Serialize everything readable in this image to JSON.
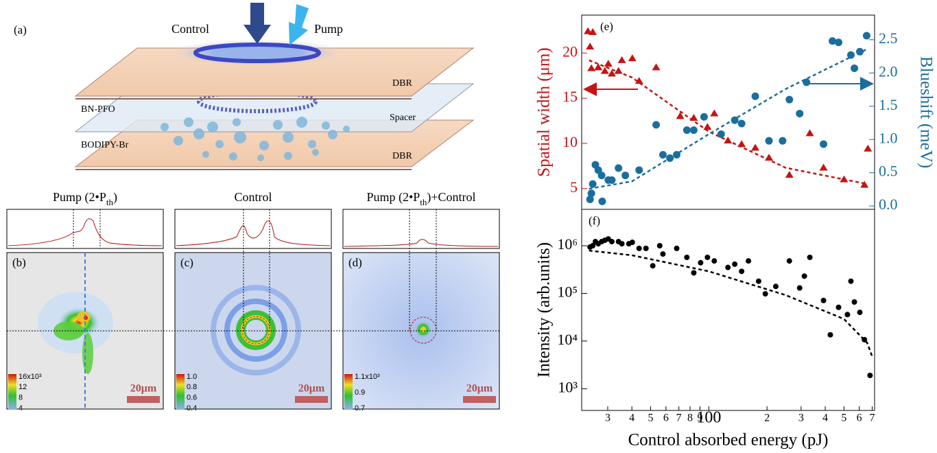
{
  "figure": {
    "panel_a": {
      "label": "(a)",
      "control": "Control",
      "pump": "Pump",
      "dbr_top": "DBR",
      "active": "BN-PFO",
      "spacer": "Spacer",
      "acceptor": "BODIPY-Br",
      "dbr_bottom": "DBR"
    },
    "panels": [
      {
        "label": "(b)",
        "title": [
          "Pump (2•P",
          "th",
          ")"
        ],
        "colorbar": [
          "16x10³",
          "12",
          "8",
          "4"
        ],
        "scale_bar": "20μm"
      },
      {
        "label": "(c)",
        "title": [
          "Control"
        ],
        "colorbar": [
          "1.0",
          "0.8",
          "0.6",
          "0.4"
        ],
        "scale_bar": "20μm"
      },
      {
        "label": "(d)",
        "title": [
          "Pump (2•P",
          "th",
          ")+Control"
        ],
        "colorbar": [
          "1.1x10³",
          "0.9",
          "0.7"
        ],
        "scale_bar": "20μm"
      }
    ]
  },
  "chart_data": [
    {
      "type": "scatter",
      "panel_label": "(e)",
      "ylabel": "Spatial width (μm)",
      "y2label": "Blueshift (meV)",
      "xscale": "log",
      "xlim": [
        22,
        720
      ],
      "ylim": [
        2.7,
        24.2
      ],
      "yticks": [
        5,
        10,
        15,
        20
      ],
      "y2lim": [
        -0.05,
        2.87
      ],
      "y2ticks": [
        {
          "value": 0,
          "label": "0.0"
        },
        0.5,
        {
          "value": 1,
          "label": "1.0"
        },
        1.5,
        {
          "value": 2,
          "label": "2.0"
        },
        2.5
      ],
      "ycolor": "#c41414",
      "y2color": "#1a6e9e",
      "series": [
        {
          "mode": "triangles",
          "color": "#c41414",
          "x": [
            23.7,
            25.1,
            24.3,
            24.7,
            26.8,
            29.0,
            30.2,
            31.5,
            34.1,
            35.5,
            40.2,
            43.6,
            53.4,
            71.1,
            83.6,
            98.4,
            106.7,
            125.6,
            147.8,
            173.9,
            204.7,
            261,
            333,
            392,
            500,
            638,
            665
          ],
          "values": [
            22.4,
            22.3,
            20.7,
            18.3,
            18.4,
            18.0,
            18.8,
            17.7,
            18.0,
            19.2,
            19.4,
            16.9,
            18.4,
            13.0,
            12.8,
            11.8,
            13.3,
            10.3,
            9.9,
            9.5,
            8.4,
            6.5,
            11.1,
            7.3,
            6.0,
            5.4,
            9.4
          ]
        },
        {
          "mode": "dashed",
          "color": "#c41414",
          "x": [
            24,
            40,
            100,
            250,
            660
          ],
          "values": [
            19.2,
            17.3,
            11.3,
            7.3,
            5.5
          ]
        },
        {
          "mode": "circles",
          "color": "#1a6e9e",
          "axis": "y2",
          "x": [
            24.3,
            24.7,
            25.1,
            25.9,
            26.8,
            27.9,
            28.1,
            30.2,
            31.5,
            34.1,
            37.0,
            43.6,
            53.4,
            57.9,
            62.9,
            68.2,
            77.0,
            83.6,
            94.5,
            115.8,
            136.2,
            147.8,
            173.9,
            204.7,
            240.7,
            261,
            295,
            320,
            392,
            436,
            469,
            543,
            566,
            604,
            655
          ],
          "values": [
            0.1,
            0.19,
            0.33,
            0.62,
            0.54,
            0.46,
            0.07,
            0.39,
            0.39,
            0.57,
            0.46,
            0.54,
            1.22,
            0.77,
            0.72,
            0.77,
            1.14,
            1.14,
            1.34,
            1.08,
            1.29,
            1.24,
            1.65,
            0.98,
            0.98,
            1.6,
            1.39,
            1.86,
            0.93,
            2.48,
            2.46,
            2.27,
            2.07,
            2.32,
            2.56
          ]
        },
        {
          "mode": "dashed",
          "color": "#1a6e9e",
          "axis": "y2",
          "x": [
            24,
            40,
            100,
            250,
            660
          ],
          "values": [
            0.26,
            0.37,
            1.08,
            1.76,
            2.36
          ]
        }
      ]
    },
    {
      "type": "scatter",
      "panel_label": "(f)",
      "ylabel": "Intensity (arb.units)",
      "xlabel": "Control absorbed energy (pJ)",
      "xscale": "log",
      "yscale": "log",
      "xlim": [
        22,
        720
      ],
      "ylim": [
        350,
        5800000
      ],
      "xticks": [
        {
          "value": 30,
          "label": "3"
        },
        {
          "value": 40,
          "label": "4"
        },
        {
          "value": 50,
          "label": "5"
        },
        {
          "value": 60,
          "label": "6"
        },
        {
          "value": 70,
          "label": "7"
        },
        {
          "value": 80,
          "label": "8"
        },
        {
          "value": 90,
          "label": "9"
        },
        100,
        {
          "value": 200,
          "label": "2"
        },
        {
          "value": 300,
          "label": "3"
        },
        {
          "value": 400,
          "label": "4"
        },
        {
          "value": 500,
          "label": "5"
        },
        {
          "value": 600,
          "label": "6"
        },
        {
          "value": 700,
          "label": "7"
        }
      ],
      "yticks": [
        {
          "value": 1000,
          "label": "10³"
        },
        {
          "value": 10000,
          "label": "10⁴"
        },
        {
          "value": 100000,
          "label": "10⁵"
        },
        {
          "value": 1000000,
          "label": "10⁶"
        }
      ],
      "series": [
        {
          "mode": "circles",
          "color": "#000000",
          "x": [
            24.3,
            25.1,
            25.9,
            26.8,
            27.9,
            29.0,
            30.2,
            31.5,
            34.1,
            35.5,
            38.6,
            40.2,
            43.6,
            47.3,
            51.3,
            55.7,
            57.9,
            68.2,
            77.0,
            83.6,
            90.7,
            98.4,
            106.7,
            125.6,
            136.2,
            147.8,
            160.3,
            181,
            196,
            222,
            261,
            295,
            312,
            333,
            392,
            425,
            469,
            521,
            543,
            566,
            604,
            638,
            682
          ],
          "values": [
            940000,
            1000000,
            1220000,
            1100000,
            1220000,
            1300000,
            1390000,
            1220000,
            1220000,
            1100000,
            1100000,
            1180000,
            880000,
            880000,
            380000,
            1000000,
            670000,
            880000,
            570000,
            270000,
            440000,
            570000,
            480000,
            350000,
            410000,
            290000,
            480000,
            180000,
            98000,
            140000,
            480000,
            130000,
            230000,
            570000,
            71000,
            13500,
            51000,
            36000,
            180000,
            66000,
            40000,
            10700,
            1900
          ]
        },
        {
          "mode": "dashed",
          "color": "#000000",
          "x": [
            24,
            40,
            100,
            250,
            500,
            660,
            700
          ],
          "values": [
            790000,
            630000,
            290000,
            92000,
            29000,
            9100,
            4700
          ]
        }
      ]
    }
  ]
}
